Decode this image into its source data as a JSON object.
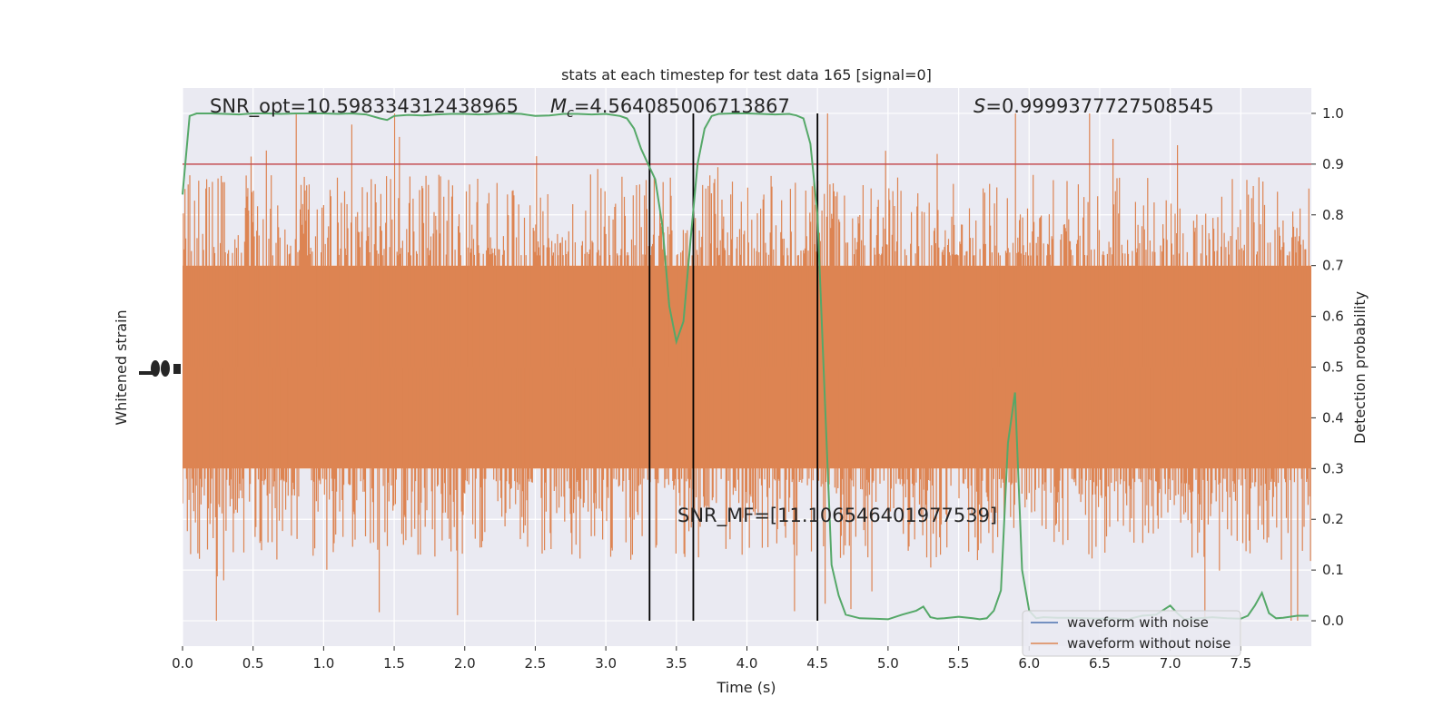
{
  "chart_data": {
    "type": "line",
    "title": "stats at each timestep for test data 165 [signal=0]",
    "xlabel": "Time (s)",
    "ylabel_left": "Whitened strain",
    "ylabel_right": "Detection probability",
    "xlim": [
      0,
      8
    ],
    "ylim_right": [
      -0.05,
      1.05
    ],
    "x_ticks": [
      "0.0",
      "0.5",
      "1.0",
      "1.5",
      "2.0",
      "2.5",
      "3.0",
      "3.5",
      "4.0",
      "4.5",
      "5.0",
      "5.5",
      "6.0",
      "6.5",
      "7.0",
      "7.5"
    ],
    "x_tick_values": [
      0,
      0.5,
      1,
      1.5,
      2,
      2.5,
      3,
      3.5,
      4,
      4.5,
      5,
      5.5,
      6,
      6.5,
      7,
      7.5
    ],
    "y_right_ticks": [
      "0.0",
      "0.1",
      "0.2",
      "0.3",
      "0.4",
      "0.5",
      "0.6",
      "0.7",
      "0.8",
      "0.9",
      "1.0"
    ],
    "y_right_tick_values": [
      0,
      0.1,
      0.2,
      0.3,
      0.4,
      0.5,
      0.6,
      0.7,
      0.8,
      0.9,
      1.0
    ],
    "annotations": {
      "snr_opt": "SNR_opt=10.598334312438965",
      "mc_symbol": "M",
      "mc_subscript": "c",
      "mc_value": "=4.564085006713867",
      "s_symbol": "S",
      "s_value": "=0.9999377727508545",
      "snr_mf": "SNR_MF=[11.106546401977539]"
    },
    "threshold": 0.9,
    "vertical_lines_x": [
      3.31,
      3.62,
      4.5
    ],
    "series": [
      {
        "name": "waveform with noise",
        "color": "#4c72b0",
        "role": "strain_left_axis"
      },
      {
        "name": "waveform without noise",
        "color": "#dd8452",
        "role": "strain_left_axis",
        "band_center": 0.5,
        "band_dense_half_width": 0.2,
        "spike_max_up": 1.0,
        "spike_max_down": 0.0
      },
      {
        "name": "",
        "color": "#55a868",
        "role": "detection_probability_right_axis",
        "x": [
          0,
          0.05,
          0.1,
          0.2,
          0.3,
          0.4,
          0.5,
          0.6,
          0.7,
          0.8,
          0.9,
          1.0,
          1.1,
          1.2,
          1.3,
          1.4,
          1.45,
          1.5,
          1.6,
          1.7,
          1.8,
          1.9,
          2.0,
          2.1,
          2.2,
          2.3,
          2.4,
          2.5,
          2.6,
          2.7,
          2.8,
          2.9,
          3.0,
          3.1,
          3.15,
          3.2,
          3.25,
          3.3,
          3.35,
          3.4,
          3.45,
          3.5,
          3.55,
          3.6,
          3.65,
          3.7,
          3.75,
          3.8,
          3.9,
          4.0,
          4.1,
          4.2,
          4.3,
          4.35,
          4.4,
          4.45,
          4.5,
          4.55,
          4.6,
          4.65,
          4.7,
          4.8,
          4.9,
          5.0,
          5.1,
          5.2,
          5.25,
          5.3,
          5.35,
          5.4,
          5.5,
          5.6,
          5.65,
          5.7,
          5.75,
          5.8,
          5.85,
          5.9,
          5.95,
          6.0,
          6.05,
          6.1,
          6.2,
          6.3,
          6.4,
          6.5,
          6.6,
          6.7,
          6.8,
          6.9,
          7.0,
          7.05,
          7.1,
          7.2,
          7.3,
          7.4,
          7.5,
          7.55,
          7.6,
          7.65,
          7.7,
          7.75,
          7.8,
          7.9,
          7.98
        ],
        "y": [
          0.84,
          0.995,
          1.0,
          1.0,
          0.999,
          0.998,
          1.0,
          1.0,
          0.999,
          1.0,
          1.0,
          1.0,
          0.999,
          1.0,
          0.998,
          0.99,
          0.987,
          0.995,
          0.997,
          0.996,
          0.998,
          0.999,
          0.999,
          0.998,
          0.999,
          1.0,
          0.999,
          0.995,
          0.996,
          0.999,
          0.999,
          0.998,
          0.999,
          0.995,
          0.99,
          0.97,
          0.93,
          0.9,
          0.87,
          0.78,
          0.62,
          0.55,
          0.59,
          0.75,
          0.9,
          0.97,
          0.995,
          0.999,
          1.0,
          1.0,
          0.999,
          0.998,
          0.999,
          0.996,
          0.99,
          0.94,
          0.8,
          0.45,
          0.11,
          0.05,
          0.012,
          0.005,
          0.004,
          0.003,
          0.012,
          0.02,
          0.028,
          0.007,
          0.004,
          0.005,
          0.008,
          0.005,
          0.003,
          0.005,
          0.02,
          0.06,
          0.35,
          0.45,
          0.1,
          0.02,
          0.005,
          0.007,
          0.006,
          0.006,
          0.005,
          0.004,
          0.005,
          0.003,
          0.01,
          0.012,
          0.03,
          0.015,
          0.003,
          0.005,
          0.007,
          0.005,
          0.004,
          0.01,
          0.03,
          0.055,
          0.015,
          0.005,
          0.006,
          0.01,
          0.01
        ]
      }
    ],
    "threshold_color": "#c44e52",
    "vline_color": "#000000",
    "band_color": "#dd8452",
    "plot_bg": "#eaeaf2",
    "grid": true,
    "legend_placement": "lower-right"
  }
}
